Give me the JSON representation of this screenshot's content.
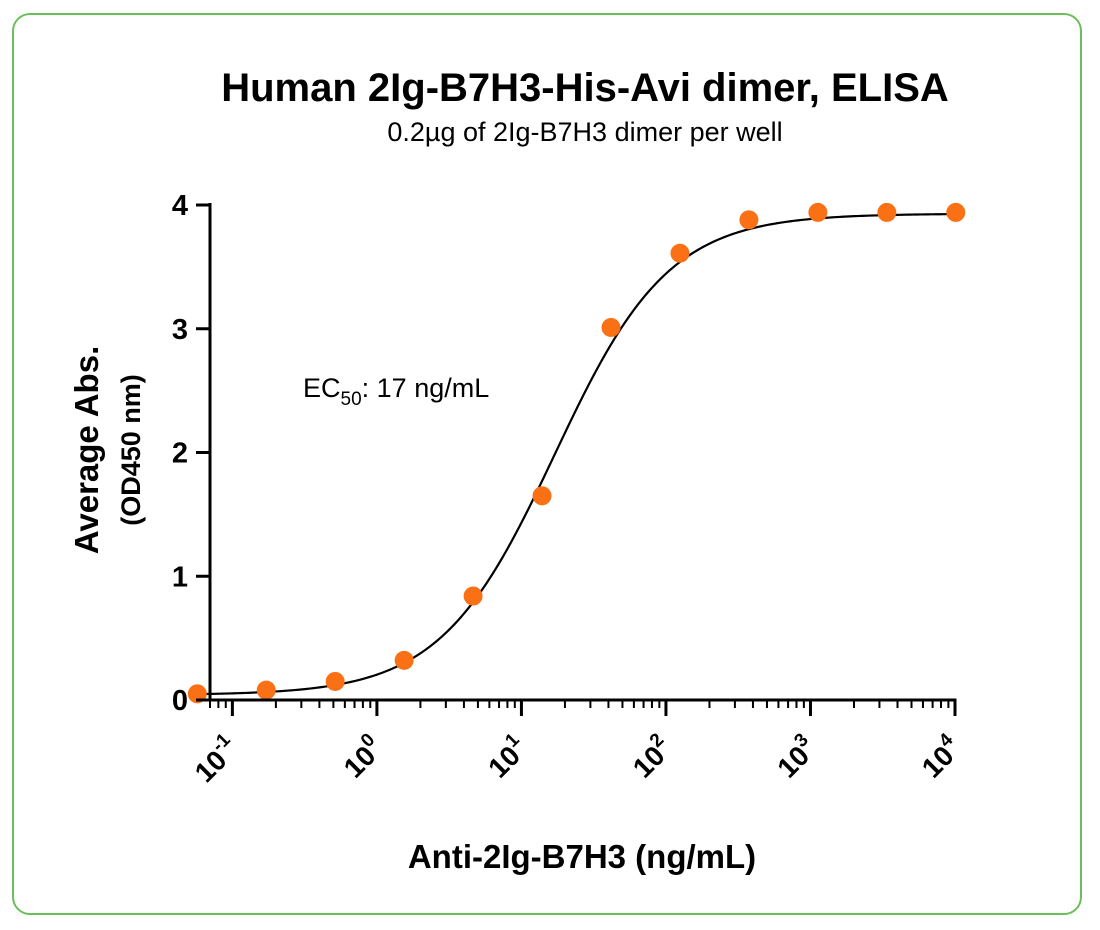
{
  "chart_data": {
    "type": "scatter",
    "title": "Human 2Ig-B7H3-His-Avi dimer, ELISA",
    "subtitle": "0.2µg of 2Ig-B7H3 dimer per well",
    "xlabel": "Anti-2Ig-B7H3 (ng/mL)",
    "ylabel": "Average Abs.",
    "ylabel_sub": "(OD450 nm)",
    "x_scale": "log",
    "xlim": [
      0.07,
      10000
    ],
    "ylim": [
      0,
      4
    ],
    "x_ticks": [
      {
        "base": "10",
        "exp": "-1",
        "value": 0.1
      },
      {
        "base": "10",
        "exp": "0",
        "value": 1
      },
      {
        "base": "10",
        "exp": "1",
        "value": 10
      },
      {
        "base": "10",
        "exp": "2",
        "value": 100
      },
      {
        "base": "10",
        "exp": "3",
        "value": 1000
      },
      {
        "base": "10",
        "exp": "4",
        "value": 10000
      }
    ],
    "y_ticks": [
      "0",
      "1",
      "2",
      "3",
      "4"
    ],
    "grid": false,
    "point_color": "#fa7014",
    "curve_color": "#000000",
    "series": [
      {
        "x": [
          0.0572,
          0.1715,
          0.5144,
          1.543,
          4.63,
          13.89,
          41.67,
          125,
          375,
          1125,
          3375,
          10125
        ],
        "y": [
          0.05,
          0.08,
          0.15,
          0.32,
          0.84,
          1.65,
          3.01,
          3.61,
          3.88,
          3.94,
          3.94,
          3.94
        ]
      }
    ],
    "fit": {
      "model": "4PL",
      "bottom": 0.04,
      "top": 3.93,
      "ec50": 17,
      "hill": 1.1
    },
    "annotation": {
      "prefix": "EC",
      "sub": "50",
      "suffix": ": 17 ng/mL"
    }
  }
}
